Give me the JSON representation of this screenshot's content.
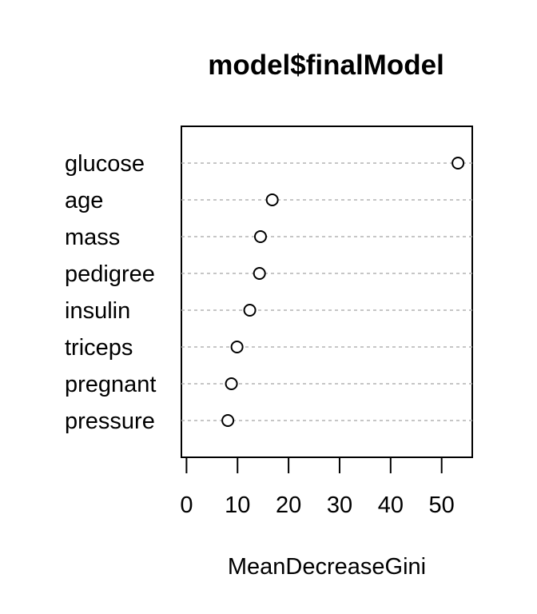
{
  "chart_data": {
    "type": "dotchart",
    "title": "model$finalModel",
    "xlabel": "MeanDecreaseGini",
    "ylabel": "",
    "xlim": [
      -1,
      56
    ],
    "xticks": [
      0,
      10,
      20,
      30,
      40,
      50
    ],
    "categories": [
      "glucose",
      "age",
      "mass",
      "pedigree",
      "insulin",
      "triceps",
      "pregnant",
      "pressure"
    ],
    "values": [
      53.2,
      16.8,
      14.5,
      14.3,
      12.4,
      9.9,
      8.8,
      8.1
    ],
    "grid": "dashed horizontal guide lines",
    "marker": "open circle"
  }
}
